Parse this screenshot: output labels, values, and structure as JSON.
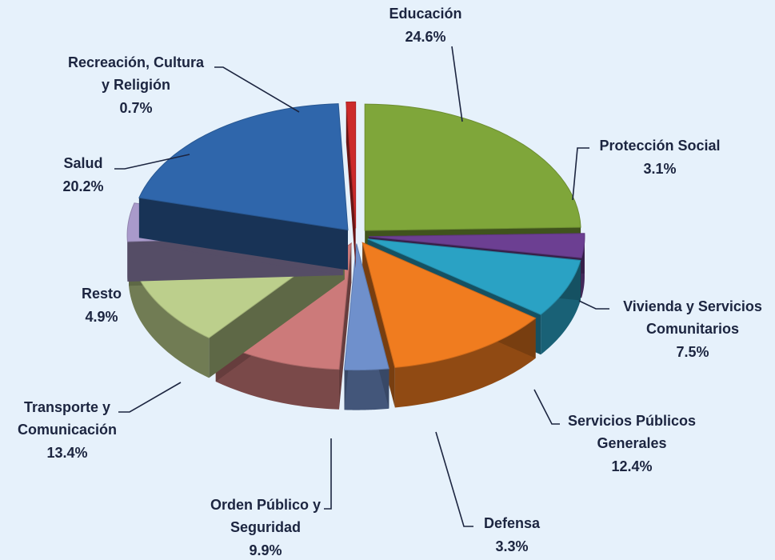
{
  "chart_data": {
    "type": "pie3d",
    "categories": [
      "Educación",
      "Protección Social",
      "Vivienda y Servicios Comunitarios",
      "Servicios Públicos Generales",
      "Defensa",
      "Orden Público y Seguridad",
      "Transporte y Comunicación",
      "Resto",
      "Salud",
      "Recreación, Cultura y Religión"
    ],
    "values": [
      24.6,
      3.1,
      7.5,
      12.4,
      3.3,
      9.9,
      13.4,
      4.9,
      20.2,
      0.7
    ],
    "value_labels": [
      "24.6%",
      "3.1%",
      "7.5%",
      "12.4%",
      "3.3%",
      "9.9%",
      "13.4%",
      "4.9%",
      "20.2%",
      "0.7%"
    ],
    "colors": [
      "#7fa63a",
      "#6c3f92",
      "#2aa2c4",
      "#f07c1f",
      "#6f90cc",
      "#cc7a7a",
      "#bccf8c",
      "#a99acb",
      "#2f66ab",
      "#cc2a2a"
    ]
  }
}
